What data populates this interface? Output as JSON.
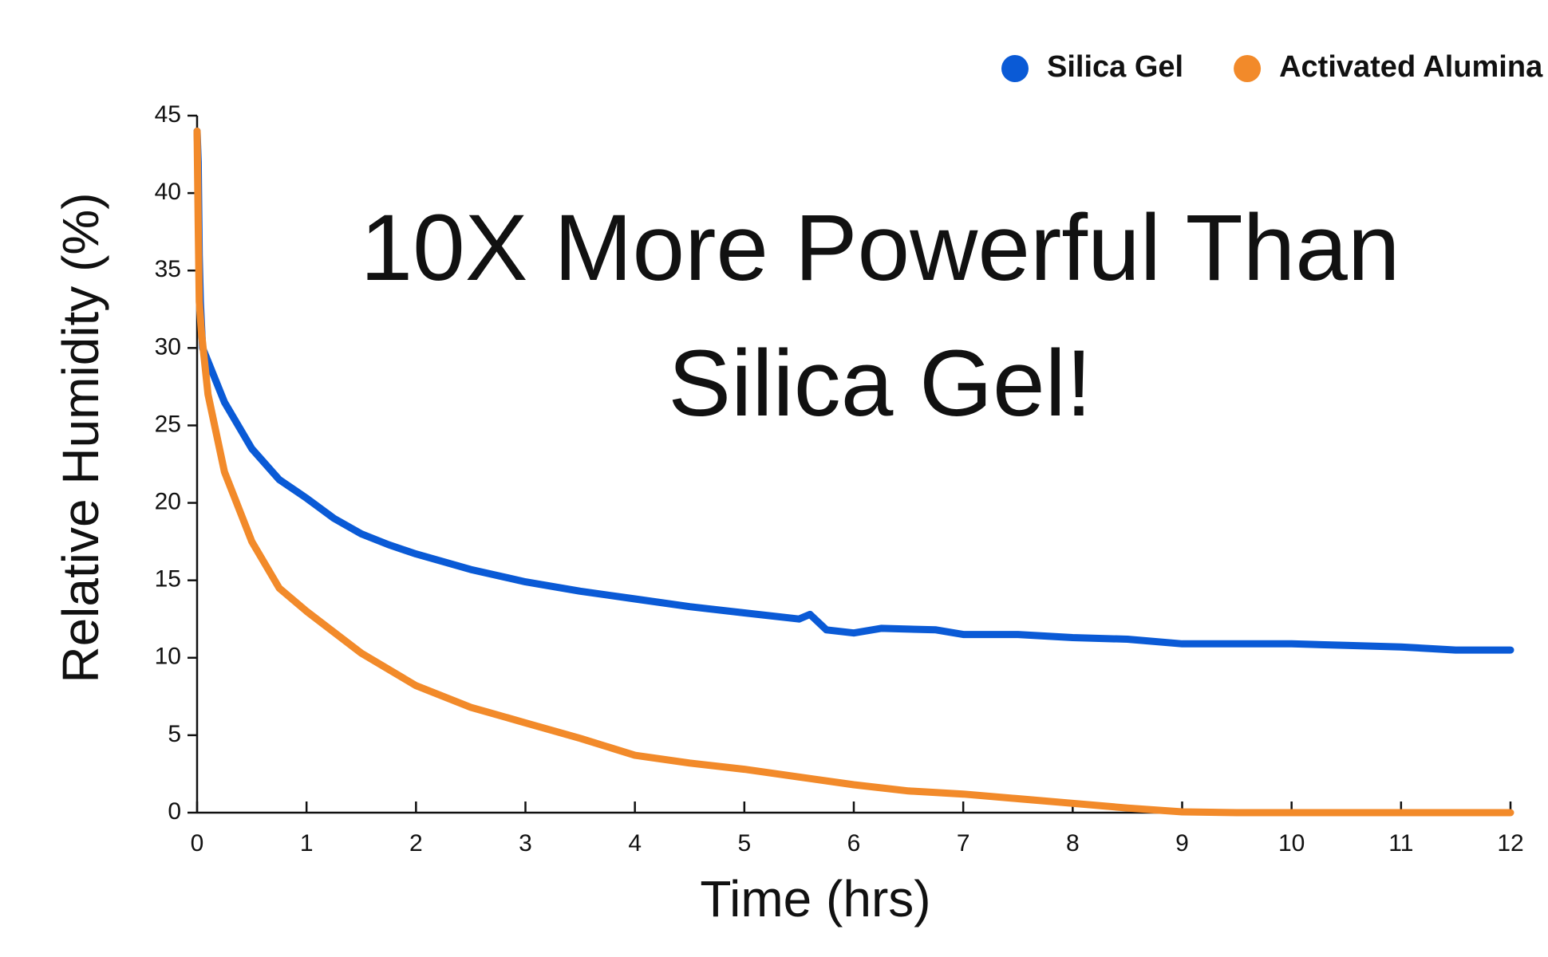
{
  "chart_data": {
    "type": "line",
    "annotation": [
      "10X More Powerful Than",
      "Silica Gel!"
    ],
    "x_label": "Time (hrs)",
    "y_label": "Relative Humidity (%)",
    "xlim": [
      0,
      12
    ],
    "xticks": [
      0,
      1,
      2,
      3,
      4,
      5,
      6,
      7,
      8,
      9,
      10,
      11,
      12
    ],
    "ylim": [
      0,
      45
    ],
    "yticks": [
      0,
      5,
      10,
      15,
      20,
      25,
      30,
      35,
      40,
      45
    ],
    "grid": false,
    "legend": "top-right",
    "series": [
      {
        "name": "Silica Gel",
        "color": "#0a5ad6",
        "x": [
          0,
          0.01,
          0.02,
          0.03,
          0.05,
          0.25,
          0.5,
          0.75,
          1,
          1.25,
          1.5,
          1.75,
          2,
          2.5,
          3,
          3.5,
          4,
          4.5,
          5,
          5.5,
          5.6,
          5.75,
          6,
          6.25,
          6.75,
          7,
          7.5,
          8,
          8.5,
          9,
          9.5,
          10,
          10.5,
          11,
          11.5,
          12
        ],
        "values": [
          44,
          42,
          36,
          33,
          30,
          26.5,
          23.5,
          21.5,
          20.3,
          19,
          18,
          17.3,
          16.7,
          15.7,
          14.9,
          14.3,
          13.8,
          13.3,
          12.9,
          12.5,
          12.8,
          11.8,
          11.6,
          11.9,
          11.8,
          11.5,
          11.5,
          11.3,
          11.2,
          10.9,
          10.9,
          10.9,
          10.8,
          10.7,
          10.5,
          10.5
        ]
      },
      {
        "name": "Activated Alumina",
        "color": "#f28a2a",
        "x": [
          0,
          0.01,
          0.02,
          0.04,
          0.1,
          0.25,
          0.5,
          0.75,
          1,
          1.5,
          2,
          2.5,
          3,
          3.5,
          4,
          4.5,
          5,
          5.5,
          6,
          6.5,
          7,
          7.5,
          8,
          8.5,
          9,
          9.5,
          10,
          11,
          12
        ],
        "values": [
          44,
          38,
          33,
          31,
          27,
          22,
          17.5,
          14.5,
          13,
          10.3,
          8.2,
          6.8,
          5.8,
          4.8,
          3.7,
          3.2,
          2.8,
          2.3,
          1.8,
          1.4,
          1.2,
          0.9,
          0.6,
          0.3,
          0.05,
          0,
          0,
          0,
          0
        ]
      }
    ]
  }
}
